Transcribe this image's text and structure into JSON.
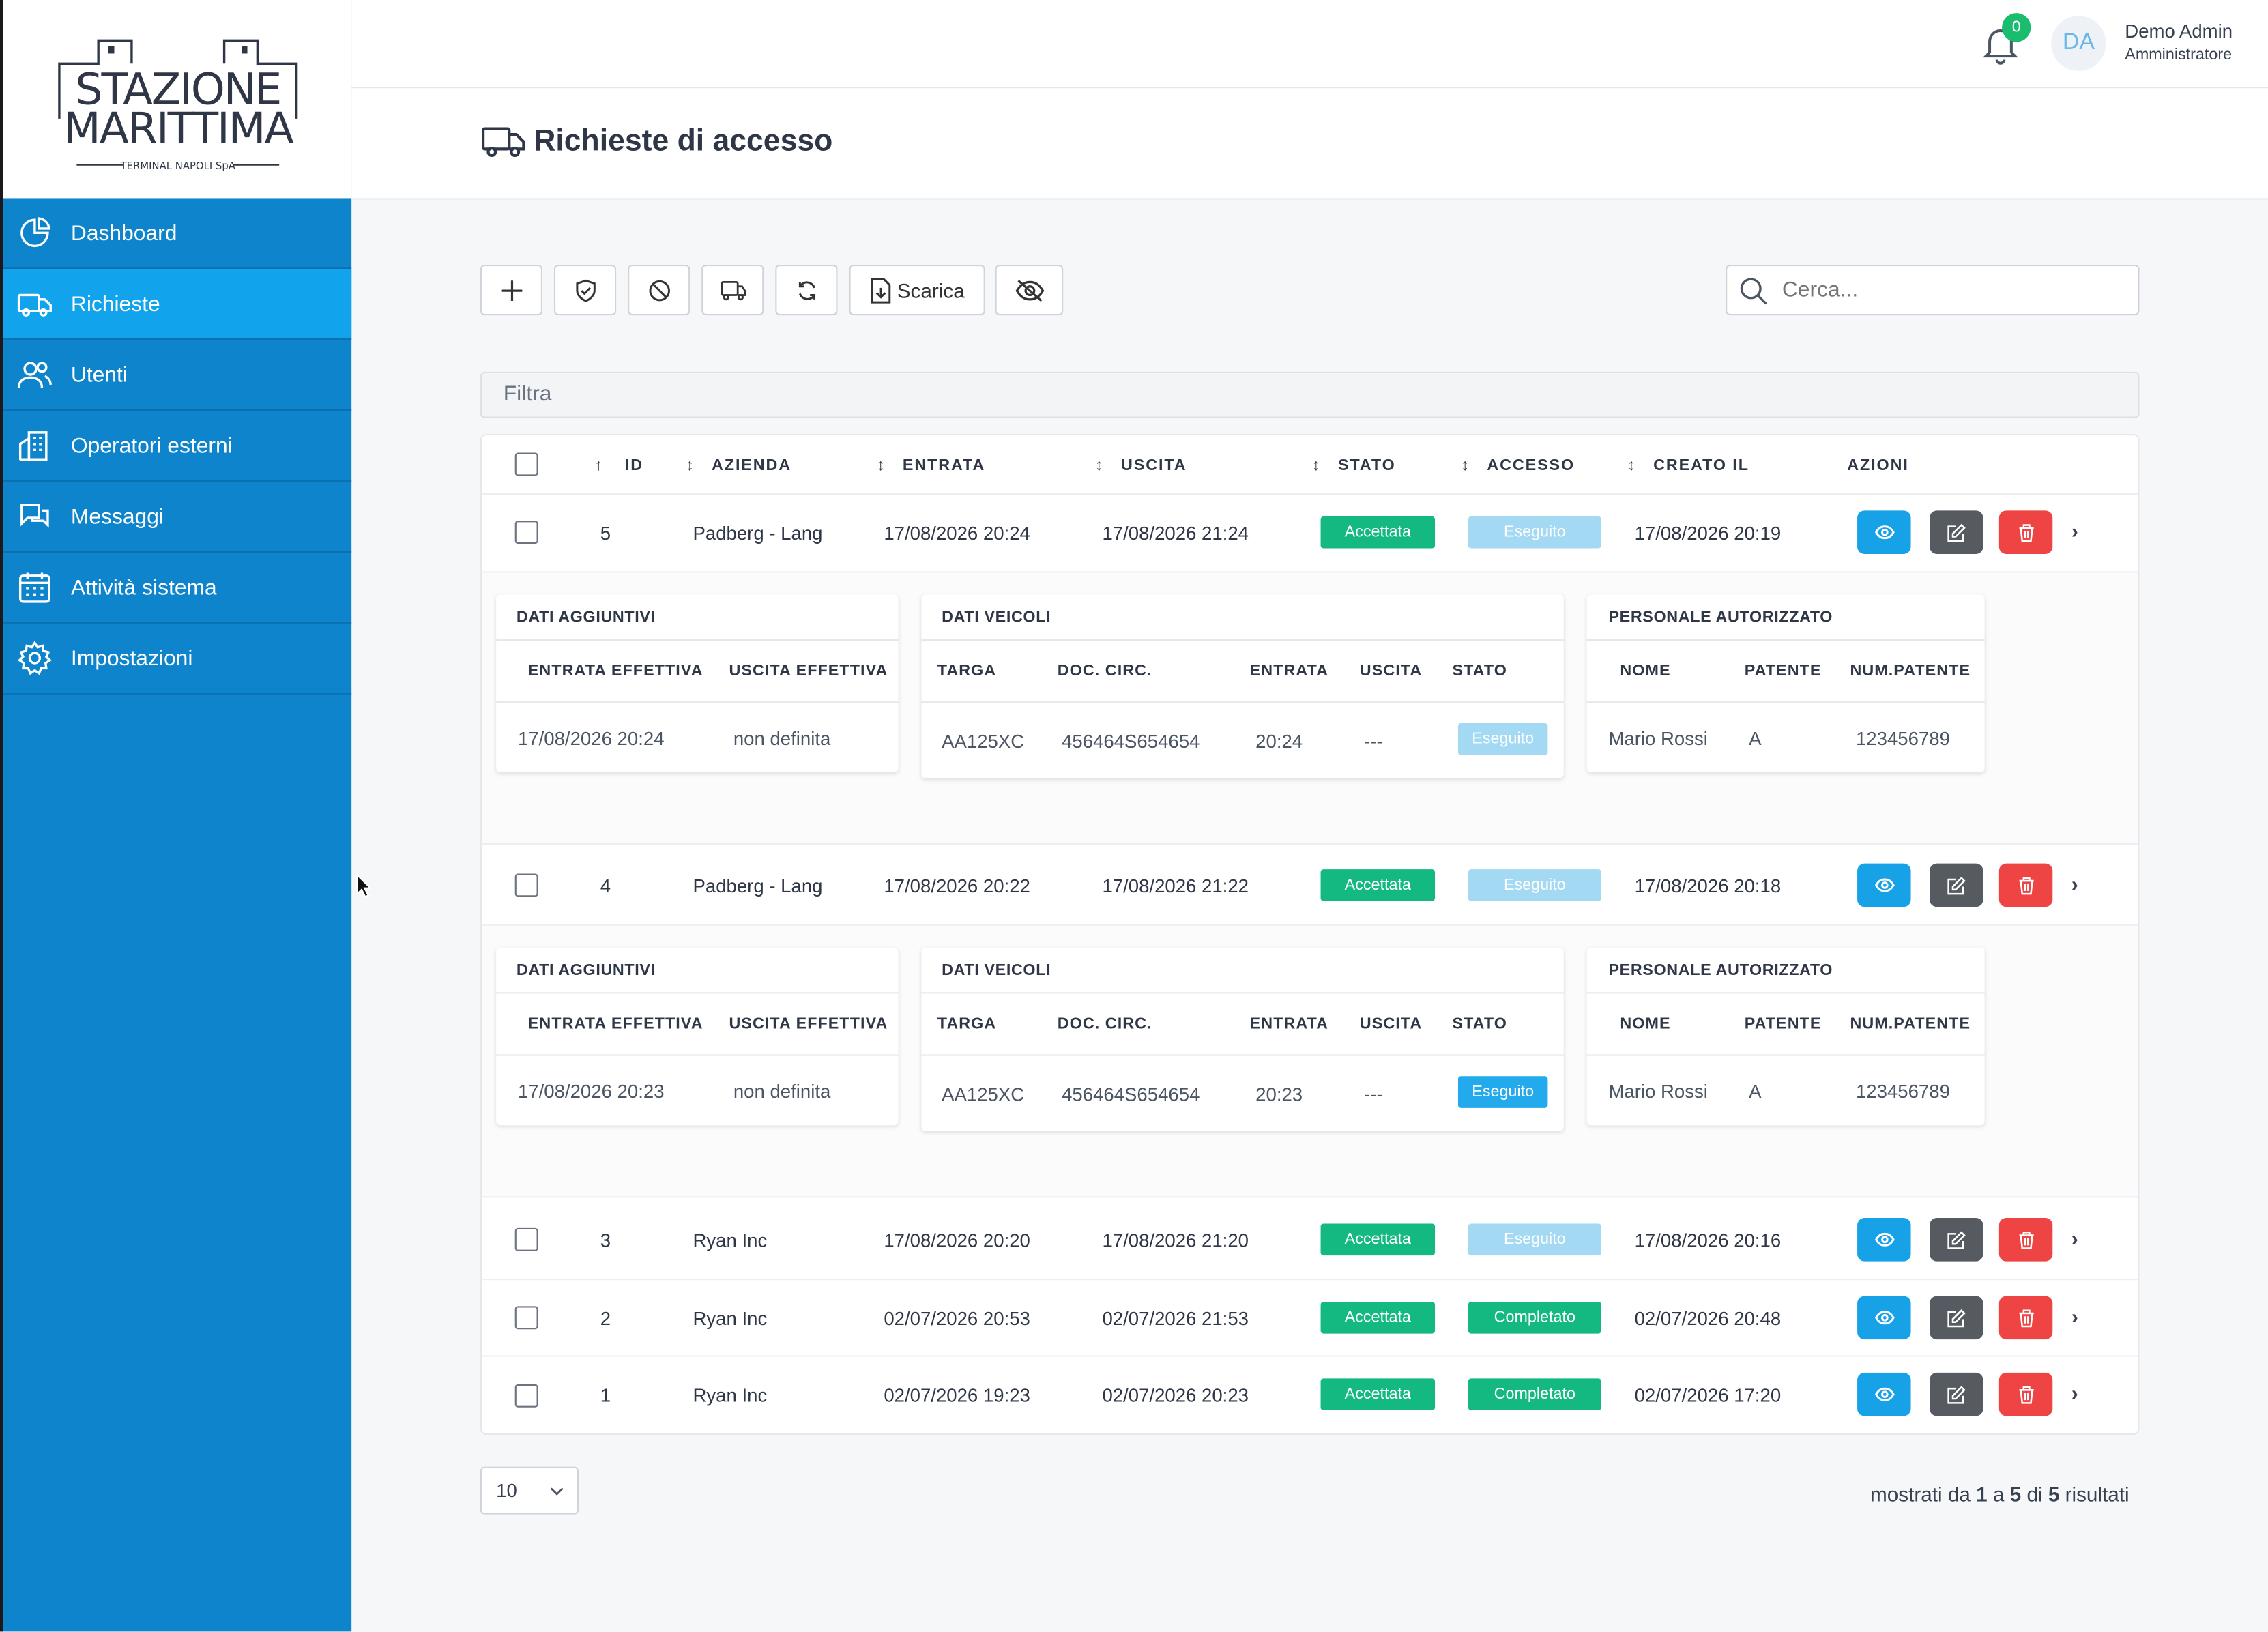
{
  "brand": {
    "line1": "STAZIONE",
    "line2": "MARITTIMA",
    "line3": "TERMINAL NAPOLI SpA"
  },
  "sidebar": {
    "items": [
      {
        "label": "Dashboard",
        "icon": "pie-chart-icon"
      },
      {
        "label": "Richieste",
        "icon": "truck-icon",
        "active": true
      },
      {
        "label": "Utenti",
        "icon": "users-icon"
      },
      {
        "label": "Operatori esterni",
        "icon": "building-icon"
      },
      {
        "label": "Messaggi",
        "icon": "chat-icon"
      },
      {
        "label": "Attività sistema",
        "icon": "calendar-icon"
      },
      {
        "label": "Impostazioni",
        "icon": "gear-icon"
      }
    ]
  },
  "header": {
    "notifications": "0",
    "avatar_initials": "DA",
    "user_name": "Demo Admin",
    "user_role": "Amministratore"
  },
  "page": {
    "title": "Richieste di accesso"
  },
  "toolbar": {
    "download_label": "Scarica",
    "search_placeholder": "Cerca...",
    "filter_label": "Filtra"
  },
  "table": {
    "headers": {
      "id": "ID",
      "azienda": "AZIENDA",
      "entrata": "ENTRATA",
      "uscita": "USCITA",
      "stato": "STATO",
      "accesso": "ACCESSO",
      "creato": "CREATO IL",
      "azioni": "AZIONI"
    },
    "rows": [
      {
        "id": "5",
        "azienda": "Padberg - Lang",
        "entrata": "17/08/2026 20:24",
        "uscita": "17/08/2026 21:24",
        "stato": "Accettata",
        "accesso": "Eseguito",
        "creato": "17/08/2026 20:19"
      },
      {
        "id": "4",
        "azienda": "Padberg - Lang",
        "entrata": "17/08/2026 20:22",
        "uscita": "17/08/2026 21:22",
        "stato": "Accettata",
        "accesso": "Eseguito",
        "creato": "17/08/2026 20:18"
      },
      {
        "id": "3",
        "azienda": "Ryan Inc",
        "entrata": "17/08/2026 20:20",
        "uscita": "17/08/2026 21:20",
        "stato": "Accettata",
        "accesso": "Eseguito",
        "creato": "17/08/2026 20:16"
      },
      {
        "id": "2",
        "azienda": "Ryan Inc",
        "entrata": "02/07/2026 20:53",
        "uscita": "02/07/2026 21:53",
        "stato": "Accettata",
        "accesso": "Completato",
        "creato": "02/07/2026 20:48"
      },
      {
        "id": "1",
        "azienda": "Ryan Inc",
        "entrata": "02/07/2026 19:23",
        "uscita": "02/07/2026 20:23",
        "stato": "Accettata",
        "accesso": "Completato",
        "creato": "02/07/2026 17:20"
      }
    ]
  },
  "details": [
    {
      "dati": {
        "title": "DATI AGGIUNTIVI",
        "h1": "ENTRATA EFFETTIVA",
        "h2": "USCITA EFFETTIVA",
        "v1": "17/08/2026 20:24",
        "v2": "non definita"
      },
      "veicoli": {
        "title": "DATI VEICOLI",
        "h1": "TARGA",
        "h2": "DOC. CIRC.",
        "h3": "ENTRATA",
        "h4": "USCITA",
        "h5": "STATO",
        "v1": "AA125XC",
        "v2": "456464S654654",
        "v3": "20:24",
        "v4": "---",
        "v5": "Eseguito"
      },
      "personale": {
        "title": "PERSONALE AUTORIZZATO",
        "h1": "NOME",
        "h2": "PATENTE",
        "h3": "NUM.PATENTE",
        "v1": "Mario Rossi",
        "v2": "A",
        "v3": "123456789"
      }
    },
    {
      "dati": {
        "title": "DATI AGGIUNTIVI",
        "h1": "ENTRATA EFFETTIVA",
        "h2": "USCITA EFFETTIVA",
        "v1": "17/08/2026 20:23",
        "v2": "non definita"
      },
      "veicoli": {
        "title": "DATI VEICOLI",
        "h1": "TARGA",
        "h2": "DOC. CIRC.",
        "h3": "ENTRATA",
        "h4": "USCITA",
        "h5": "STATO",
        "v1": "AA125XC",
        "v2": "456464S654654",
        "v3": "20:23",
        "v4": "---",
        "v5": "Eseguito"
      },
      "personale": {
        "title": "PERSONALE AUTORIZZATO",
        "h1": "NOME",
        "h2": "PATENTE",
        "h3": "NUM.PATENTE",
        "v1": "Mario Rossi",
        "v2": "A",
        "v3": "123456789"
      }
    }
  ],
  "pagination": {
    "page_size": "10",
    "r1": "mostrati da",
    "from": "1",
    "r2": "a",
    "to": "5",
    "r3": "di",
    "total": "5",
    "r4": "risultati"
  },
  "colors": {
    "sidebar": "#0d84cc",
    "sidebar_active": "#11a4ec",
    "success": "#13b981",
    "info_light": "#a3d9f3",
    "view": "#17a2e8",
    "edit": "#555b61",
    "delete": "#ef4444"
  }
}
